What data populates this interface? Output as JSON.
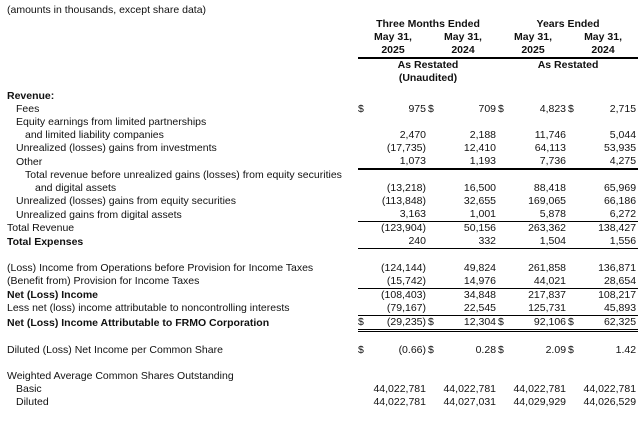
{
  "note": "(amounts in thousands, except share data)",
  "currency_symbol": "$",
  "colors": {
    "text": "#111111",
    "rule": "#000000",
    "background": "#ffffff"
  },
  "header": {
    "groups": [
      {
        "title": "Three Months Ended",
        "restated": "As Restated",
        "note": "(Unaudited)"
      },
      {
        "title": "Years Ended",
        "restated": "As Restated",
        "note": ""
      }
    ],
    "columns": [
      {
        "month": "May 31,",
        "year": "2025"
      },
      {
        "month": "May 31,",
        "year": "2024"
      },
      {
        "month": "May 31,",
        "year": "2025"
      },
      {
        "month": "May 31,",
        "year": "2024"
      }
    ]
  },
  "rows": [
    {
      "label": "Revenue:",
      "indent": 0,
      "bold": true,
      "dollar": false,
      "values": null,
      "rule": "none"
    },
    {
      "label": "Fees",
      "indent": 1,
      "bold": false,
      "dollar": true,
      "values": [
        "975",
        "709",
        "4,823",
        "2,715"
      ],
      "rule": "none"
    },
    {
      "label": "Equity earnings from limited partnerships",
      "indent": 1,
      "bold": false,
      "dollar": false,
      "values": null,
      "rule": "none"
    },
    {
      "label": "and limited liability companies",
      "indent": 2,
      "bold": false,
      "dollar": false,
      "values": [
        "2,470",
        "2,188",
        "11,746",
        "5,044"
      ],
      "rule": "none"
    },
    {
      "label": "Unrealized (losses) gains from investments",
      "indent": 1,
      "bold": false,
      "dollar": false,
      "values": [
        "(17,735)",
        "12,410",
        "64,113",
        "53,935"
      ],
      "rule": "none"
    },
    {
      "label": "Other",
      "indent": 1,
      "bold": false,
      "dollar": false,
      "values": [
        "1,073",
        "1,193",
        "7,736",
        "4,275"
      ],
      "rule": "thick"
    },
    {
      "label": "Total revenue before unrealized gains (losses) from equity securities",
      "indent": 2,
      "bold": false,
      "dollar": false,
      "values": null,
      "rule": "none"
    },
    {
      "label": "and digital assets",
      "indent": 3,
      "bold": false,
      "dollar": false,
      "values": [
        "(13,218)",
        "16,500",
        "88,418",
        "65,969"
      ],
      "rule": "none"
    },
    {
      "label": "Unrealized (losses) gains from equity securities",
      "indent": 1,
      "bold": false,
      "dollar": false,
      "values": [
        "(113,848)",
        "32,655",
        "169,065",
        "66,186"
      ],
      "rule": "none"
    },
    {
      "label": "Unrealized gains from digital assets",
      "indent": 1,
      "bold": false,
      "dollar": false,
      "values": [
        "3,163",
        "1,001",
        "5,878",
        "6,272"
      ],
      "rule": "single"
    },
    {
      "label": "Total Revenue",
      "indent": 0,
      "bold": false,
      "dollar": false,
      "values": [
        "(123,904)",
        "50,156",
        "263,362",
        "138,427"
      ],
      "rule": "none"
    },
    {
      "label": "Total Expenses",
      "indent": 0,
      "bold": true,
      "dollar": false,
      "values": [
        "240",
        "332",
        "1,504",
        "1,556"
      ],
      "rule": "single"
    },
    {
      "spacer": 13
    },
    {
      "label": "(Loss) Income from Operations before Provision for Income Taxes",
      "indent": 0,
      "bold": false,
      "dollar": false,
      "values": [
        "(124,144)",
        "49,824",
        "261,858",
        "136,871"
      ],
      "rule": "none"
    },
    {
      "label": "(Benefit from) Provision for Income Taxes",
      "indent": 0,
      "bold": false,
      "dollar": false,
      "values": [
        "(15,742)",
        "14,976",
        "44,021",
        "28,654"
      ],
      "rule": "single"
    },
    {
      "label": "Net (Loss) Income",
      "indent": 0,
      "bold": true,
      "dollar": false,
      "values": [
        "(108,403)",
        "34,848",
        "217,837",
        "108,217"
      ],
      "rule": "none"
    },
    {
      "label": "Less net (loss) income attributable to noncontrolling interests",
      "indent": 0,
      "bold": false,
      "dollar": false,
      "values": [
        "(79,167)",
        "22,545",
        "125,731",
        "45,893"
      ],
      "rule": "single"
    },
    {
      "label": "Net (Loss) Income Attributable to FRMO Corporation",
      "indent": 0,
      "bold": true,
      "dollar": true,
      "values": [
        "(29,235)",
        "12,304",
        "92,106",
        "62,325"
      ],
      "rule": "double"
    },
    {
      "spacer": 14
    },
    {
      "label": "Diluted (Loss) Net Income per Common Share",
      "indent": 0,
      "bold": false,
      "dollar": true,
      "values": [
        "(0.66)",
        "0.28",
        "2.09",
        "1.42"
      ],
      "rule": "none"
    },
    {
      "spacer": 12
    },
    {
      "label": "Weighted Average Common Shares Outstanding",
      "indent": 0,
      "bold": false,
      "dollar": false,
      "values": null,
      "rule": "none"
    },
    {
      "label": "Basic",
      "indent": 1,
      "bold": false,
      "dollar": false,
      "values": [
        "44,022,781",
        "44,022,781",
        "44,022,781",
        "44,022,781"
      ],
      "rule": "none"
    },
    {
      "label": "Diluted",
      "indent": 1,
      "bold": false,
      "dollar": false,
      "values": [
        "44,022,781",
        "44,027,031",
        "44,029,929",
        "44,026,529"
      ],
      "rule": "none"
    }
  ]
}
